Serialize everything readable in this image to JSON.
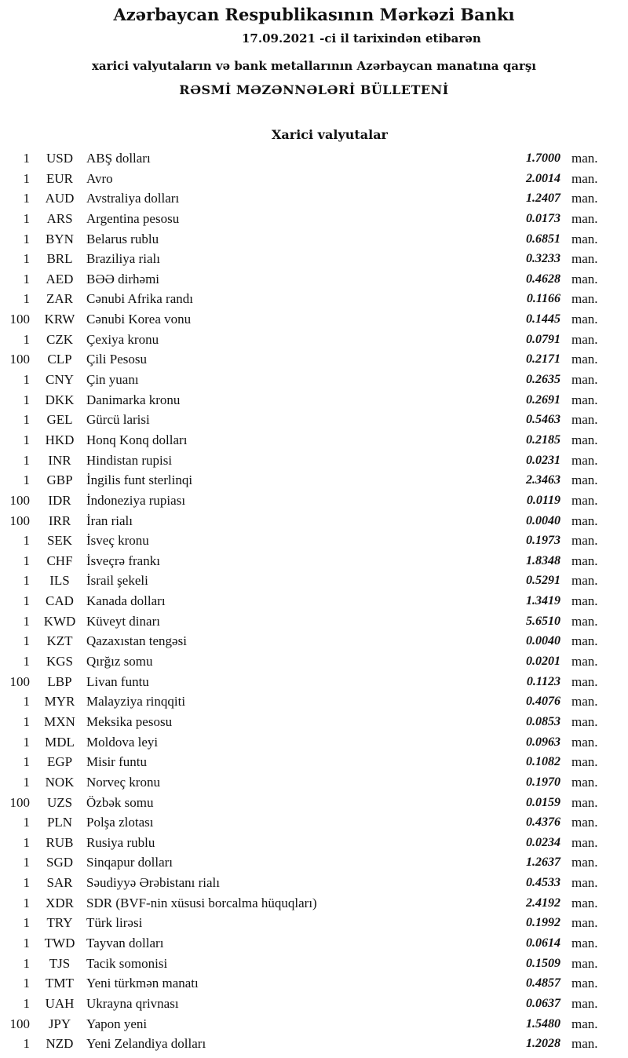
{
  "header": {
    "title": "Azərbaycan Respublikasının Mərkəzi Bankı",
    "date_line": "17.09.2021  -ci il tarixindən etibarən",
    "subtitle": "xarici valyutaların və bank metallarının Azərbaycan manatına qarşı",
    "bulletin": "RƏSMİ MƏZƏNNƏLƏRİ BÜLLETENİ"
  },
  "section_title": "Xarici valyutalar",
  "unit_label": "man.",
  "rates": [
    {
      "units": "1",
      "code": "USD",
      "name": "ABŞ dolları",
      "value": "1.7000"
    },
    {
      "units": "1",
      "code": "EUR",
      "name": "Avro",
      "value": "2.0014"
    },
    {
      "units": "1",
      "code": "AUD",
      "name": "Avstraliya dolları",
      "value": "1.2407"
    },
    {
      "units": "1",
      "code": "ARS",
      "name": "Argentina pesosu",
      "value": "0.0173"
    },
    {
      "units": "1",
      "code": "BYN",
      "name": "Belarus rublu",
      "value": "0.6851"
    },
    {
      "units": "1",
      "code": "BRL",
      "name": "Braziliya rialı",
      "value": "0.3233"
    },
    {
      "units": "1",
      "code": "AED",
      "name": "BƏƏ dirhəmi",
      "value": "0.4628"
    },
    {
      "units": "1",
      "code": "ZAR",
      "name": "Cənubi Afrika randı",
      "value": "0.1166"
    },
    {
      "units": "100",
      "code": "KRW",
      "name": "Cənubi Korea vonu",
      "value": "0.1445"
    },
    {
      "units": "1",
      "code": "CZK",
      "name": "Çexiya kronu",
      "value": "0.0791"
    },
    {
      "units": "100",
      "code": "CLP",
      "name": "Çili Pesosu",
      "value": "0.2171"
    },
    {
      "units": "1",
      "code": "CNY",
      "name": "Çin yuanı",
      "value": "0.2635"
    },
    {
      "units": "1",
      "code": "DKK",
      "name": "Danimarka kronu",
      "value": "0.2691"
    },
    {
      "units": "1",
      "code": "GEL",
      "name": "Gürcü larisi",
      "value": "0.5463"
    },
    {
      "units": "1",
      "code": "HKD",
      "name": "Honq Konq dolları",
      "value": "0.2185"
    },
    {
      "units": "1",
      "code": "INR",
      "name": "Hindistan rupisi",
      "value": "0.0231"
    },
    {
      "units": "1",
      "code": "GBP",
      "name": "İngilis funt sterlinqi",
      "value": "2.3463"
    },
    {
      "units": "100",
      "code": "IDR",
      "name": "İndoneziya rupiası",
      "value": "0.0119"
    },
    {
      "units": "100",
      "code": "IRR",
      "name": "İran rialı",
      "value": "0.0040"
    },
    {
      "units": "1",
      "code": "SEK",
      "name": "İsveç kronu",
      "value": "0.1973"
    },
    {
      "units": "1",
      "code": "CHF",
      "name": "İsveçrə frankı",
      "value": "1.8348"
    },
    {
      "units": "1",
      "code": "ILS",
      "name": "İsrail şekeli",
      "value": "0.5291"
    },
    {
      "units": "1",
      "code": "CAD",
      "name": "Kanada dolları",
      "value": "1.3419"
    },
    {
      "units": "1",
      "code": "KWD",
      "name": "Küveyt dinarı",
      "value": "5.6510"
    },
    {
      "units": "1",
      "code": "KZT",
      "name": "Qazaxıstan tengəsi",
      "value": "0.0040"
    },
    {
      "units": "1",
      "code": "KGS",
      "name": "Qırğız somu",
      "value": "0.0201"
    },
    {
      "units": "100",
      "code": "LBP",
      "name": "Livan funtu",
      "value": "0.1123"
    },
    {
      "units": "1",
      "code": "MYR",
      "name": "Malayziya rinqqiti",
      "value": "0.4076"
    },
    {
      "units": "1",
      "code": "MXN",
      "name": "Meksika pesosu",
      "value": "0.0853"
    },
    {
      "units": "1",
      "code": "MDL",
      "name": "Moldova leyi",
      "value": "0.0963"
    },
    {
      "units": "1",
      "code": "EGP",
      "name": "Misir funtu",
      "value": "0.1082"
    },
    {
      "units": "1",
      "code": "NOK",
      "name": "Norveç kronu",
      "value": "0.1970"
    },
    {
      "units": "100",
      "code": "UZS",
      "name": "Özbək somu",
      "value": "0.0159"
    },
    {
      "units": "1",
      "code": "PLN",
      "name": "Polşa zlotası",
      "value": "0.4376"
    },
    {
      "units": "1",
      "code": "RUB",
      "name": "Rusiya rublu",
      "value": "0.0234"
    },
    {
      "units": "1",
      "code": "SGD",
      "name": "Sinqapur dolları",
      "value": "1.2637"
    },
    {
      "units": "1",
      "code": "SAR",
      "name": "Səudiyyə Ərəbistanı rialı",
      "value": "0.4533"
    },
    {
      "units": "1",
      "code": "XDR",
      "name": "SDR (BVF-nin xüsusi borcalma hüquqları)",
      "value": "2.4192"
    },
    {
      "units": "1",
      "code": "TRY",
      "name": "Türk lirəsi",
      "value": "0.1992"
    },
    {
      "units": "1",
      "code": "TWD",
      "name": "Tayvan dolları",
      "value": "0.0614"
    },
    {
      "units": "1",
      "code": "TJS",
      "name": "Tacik somonisi",
      "value": "0.1509"
    },
    {
      "units": "1",
      "code": "TMT",
      "name": "Yeni türkmən manatı",
      "value": "0.4857"
    },
    {
      "units": "1",
      "code": "UAH",
      "name": "Ukrayna qrivnası",
      "value": "0.0637"
    },
    {
      "units": "100",
      "code": "JPY",
      "name": "Yapon yeni",
      "value": "1.5480"
    },
    {
      "units": "1",
      "code": "NZD",
      "name": "Yeni Zelandiya dolları",
      "value": "1.2028"
    }
  ]
}
